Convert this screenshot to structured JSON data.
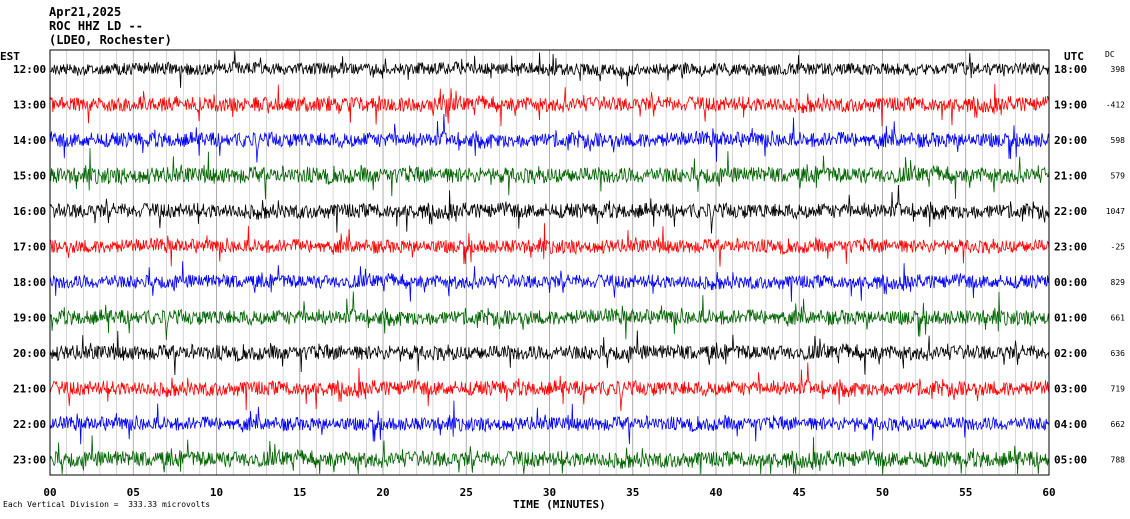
{
  "header": {
    "date": "Apr21,2025",
    "station": "ROC HHZ LD --",
    "network": "(LDEO, Rochester)"
  },
  "left_axis_label": "EST",
  "right_axis_label": "UTC",
  "dc_label": "DC",
  "footnote": "Each Vertical Division =  333.33 microvolts",
  "chart_data": {
    "type": "line",
    "title": "",
    "xlabel": "TIME (MINUTES)",
    "ylabel": "",
    "xlim": [
      0,
      60
    ],
    "x_ticks": [
      "00",
      "05",
      "10",
      "15",
      "20",
      "25",
      "30",
      "35",
      "40",
      "45",
      "50",
      "55",
      "60"
    ],
    "rows": [
      {
        "est": "12:00",
        "utc": "18:00",
        "dc": "398",
        "color": "#000000",
        "amp": 10
      },
      {
        "est": "13:00",
        "utc": "19:00",
        "dc": "-412",
        "color": "#ff0000",
        "amp": 12
      },
      {
        "est": "14:00",
        "utc": "20:00",
        "dc": "598",
        "color": "#0000ff",
        "amp": 12
      },
      {
        "est": "15:00",
        "utc": "21:00",
        "dc": "579",
        "color": "#006400",
        "amp": 13
      },
      {
        "est": "16:00",
        "utc": "22:00",
        "dc": "1047",
        "color": "#000000",
        "amp": 12
      },
      {
        "est": "17:00",
        "utc": "23:00",
        "dc": "-25",
        "color": "#ff0000",
        "amp": 11
      },
      {
        "est": "18:00",
        "utc": "00:00",
        "dc": "829",
        "color": "#0000ff",
        "amp": 11
      },
      {
        "est": "19:00",
        "utc": "01:00",
        "dc": "661",
        "color": "#006400",
        "amp": 12
      },
      {
        "est": "20:00",
        "utc": "02:00",
        "dc": "636",
        "color": "#000000",
        "amp": 12
      },
      {
        "est": "21:00",
        "utc": "03:00",
        "dc": "719",
        "color": "#ff0000",
        "amp": 12
      },
      {
        "est": "22:00",
        "utc": "04:00",
        "dc": "662",
        "color": "#0000ff",
        "amp": 11
      },
      {
        "est": "23:00",
        "utc": "05:00",
        "dc": "788",
        "color": "#006400",
        "amp": 13
      }
    ]
  }
}
